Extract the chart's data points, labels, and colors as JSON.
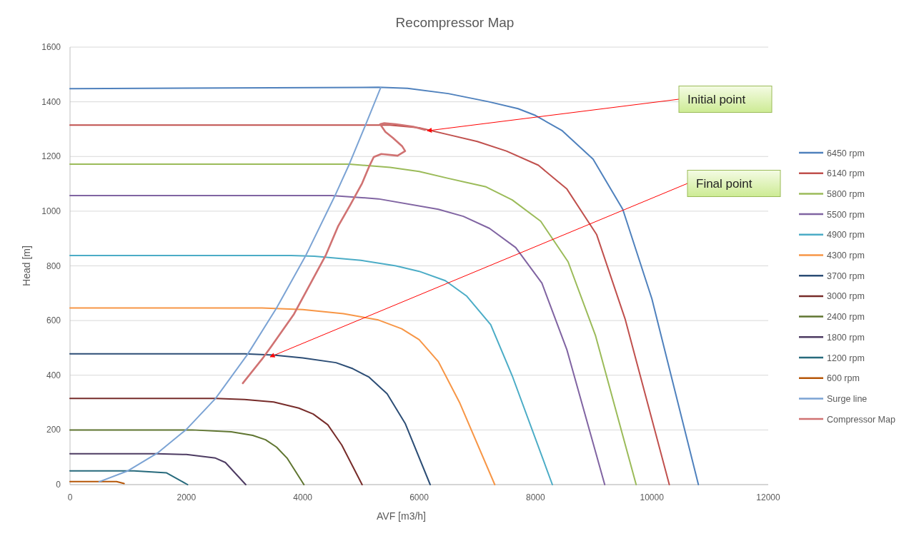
{
  "chart_data": {
    "type": "line",
    "title": "Recompressor Map",
    "xlabel": "AVF [m3/h]",
    "ylabel": "Head [m]",
    "xlim": [
      0,
      12000
    ],
    "xticks": [
      0,
      2000,
      4000,
      6000,
      8000,
      10000,
      12000
    ],
    "ylim": [
      0,
      1600
    ],
    "yticks": [
      0,
      200,
      400,
      600,
      800,
      1000,
      1200,
      1400,
      1600
    ],
    "grid": "y",
    "legend": "right",
    "series": [
      {
        "name": "6450 rpm",
        "color": "#4f81bd",
        "x": [
          0,
          5300,
          5800,
          6500,
          7200,
          7700,
          8000,
          8460,
          8990,
          9500,
          10000,
          10800
        ],
        "values": [
          1448,
          1453,
          1449,
          1430,
          1400,
          1375,
          1350,
          1294,
          1190,
          1007,
          680,
          0
        ]
      },
      {
        "name": "6140 rpm",
        "color": "#c0504d",
        "x": [
          0,
          5500,
          6000,
          6500,
          7000,
          7500,
          8050,
          8540,
          9050,
          9540,
          10300
        ],
        "values": [
          1315,
          1315,
          1305,
          1280,
          1255,
          1220,
          1168,
          1081,
          915,
          606,
          0
        ]
      },
      {
        "name": "5800 rpm",
        "color": "#9bbb59",
        "x": [
          0,
          4800,
          5500,
          6000,
          6500,
          7150,
          7600,
          8090,
          8560,
          9030,
          9730
        ],
        "values": [
          1172,
          1172,
          1160,
          1145,
          1120,
          1089,
          1041,
          963,
          815,
          546,
          0
        ]
      },
      {
        "name": "5500 rpm",
        "color": "#8064a2",
        "x": [
          0,
          4500,
          5300,
          6330,
          6760,
          7210,
          7660,
          8110,
          8540,
          9190
        ],
        "values": [
          1057,
          1057,
          1045,
          1007,
          981,
          937,
          867,
          737,
          493,
          0
        ]
      },
      {
        "name": "4900 rpm",
        "color": "#4bacc6",
        "x": [
          0,
          3800,
          4200,
          5000,
          5600,
          6000,
          6450,
          6820,
          7230,
          7600,
          8290
        ],
        "values": [
          838,
          838,
          835,
          820,
          800,
          780,
          746,
          689,
          585,
          398,
          0
        ]
      },
      {
        "name": "4300 rpm",
        "color": "#f79646",
        "x": [
          0,
          3300,
          4000,
          4700,
          5300,
          5700,
          6000,
          6330,
          6700,
          7300
        ],
        "values": [
          646,
          646,
          640,
          625,
          602,
          570,
          530,
          450,
          298,
          0
        ]
      },
      {
        "name": "3700 rpm",
        "color": "#2c4d75",
        "x": [
          0,
          3000,
          3500,
          4000,
          4570,
          4860,
          5140,
          5450,
          5760,
          6190
        ],
        "values": [
          478,
          478,
          474,
          463,
          446,
          424,
          393,
          332,
          224,
          0
        ]
      },
      {
        "name": "3000 rpm",
        "color": "#772c2a",
        "x": [
          0,
          2500,
          3000,
          3500,
          3930,
          4180,
          4430,
          4670,
          5020
        ],
        "values": [
          315,
          315,
          311,
          302,
          280,
          258,
          219,
          145,
          0
        ]
      },
      {
        "name": "2400 rpm",
        "color": "#5f7530",
        "x": [
          0,
          2100,
          2770,
          3140,
          3360,
          3550,
          3730,
          4020
        ],
        "values": [
          200,
          200,
          193,
          180,
          164,
          137,
          97,
          0
        ]
      },
      {
        "name": "1800 rpm",
        "color": "#4d3b62",
        "x": [
          0,
          1500,
          2000,
          2500,
          2670,
          3020
        ],
        "values": [
          113,
          113,
          110,
          97,
          81,
          0
        ]
      },
      {
        "name": "1200 rpm",
        "color": "#276a7c",
        "x": [
          0,
          1100,
          1660,
          2020
        ],
        "values": [
          50,
          50,
          43,
          0
        ]
      },
      {
        "name": "600 rpm",
        "color": "#b65708",
        "x": [
          0,
          800,
          930
        ],
        "values": [
          11,
          11,
          4
        ]
      },
      {
        "name": "Surge line",
        "color": "#7ba3d4",
        "x": [
          500,
          1000,
          1500,
          2000,
          2500,
          3050,
          3550,
          4050,
          4550,
          4800,
          5080,
          5340
        ],
        "values": [
          10,
          51,
          115,
          202,
          315,
          476,
          646,
          837,
          1055,
          1172,
          1316,
          1452
        ]
      },
      {
        "name": "Compressor Map",
        "color": "#d07272",
        "x": [
          6100,
          5900,
          5600,
          5400,
          5330,
          5420,
          5550,
          5710,
          5760,
          5630,
          5350,
          5220,
          5140,
          5020,
          4820,
          4610,
          4400,
          4160,
          3850,
          3460,
          3300,
          2970
        ],
        "values": [
          1297,
          1309,
          1318,
          1322,
          1318,
          1290,
          1268,
          1237,
          1220,
          1203,
          1209,
          1198,
          1163,
          1102,
          1024,
          946,
          841,
          746,
          624,
          506,
          459,
          371
        ]
      }
    ],
    "annotations": [
      {
        "text": "Initial point",
        "x": 6140,
        "y": 1294
      },
      {
        "text": "Final point",
        "x": 3440,
        "y": 467
      }
    ]
  }
}
